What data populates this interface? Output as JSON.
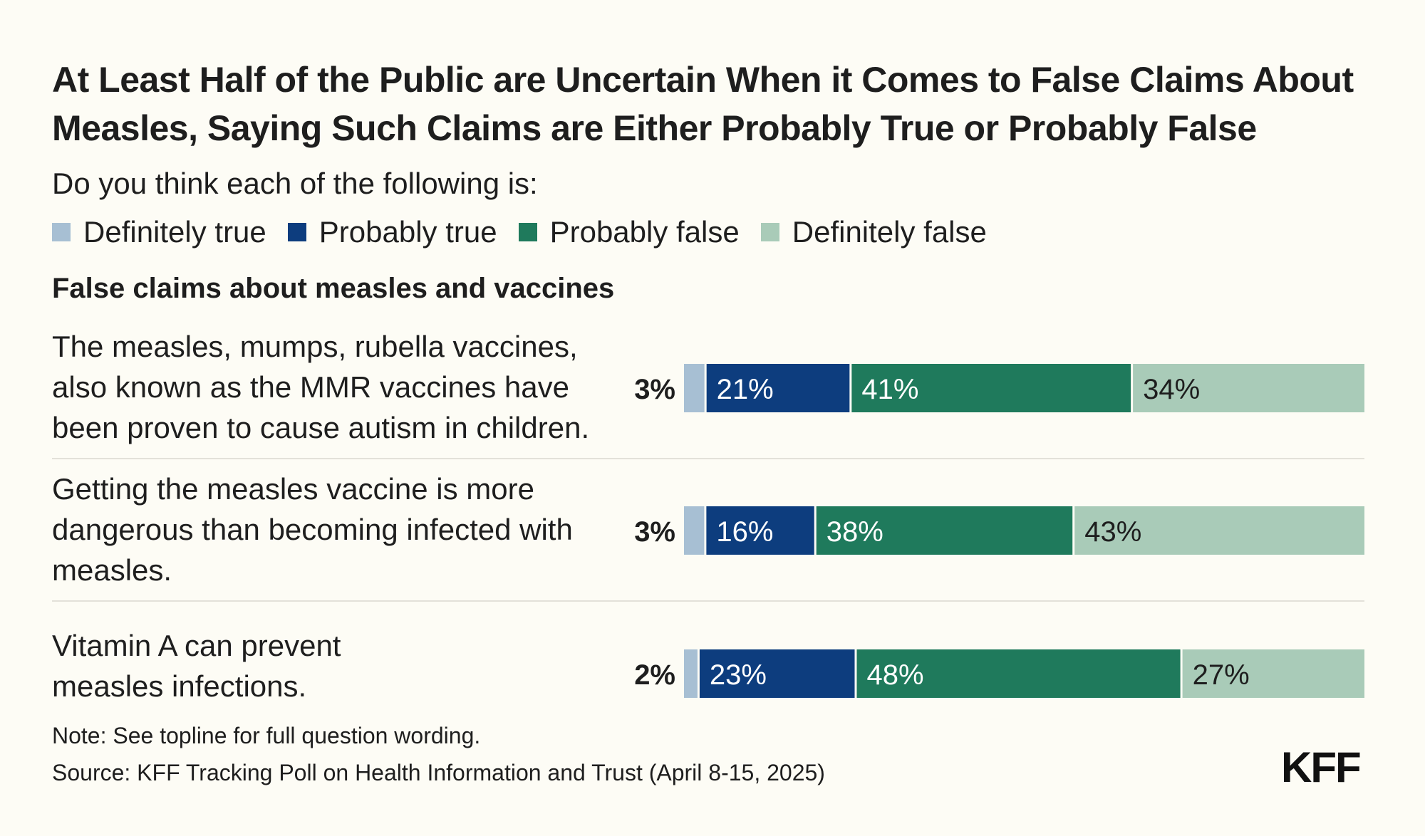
{
  "chart_data": {
    "type": "bar",
    "orientation": "horizontal",
    "stacked": true,
    "title": "At Least Half of the Public are Uncertain When it Comes to False Claims About Measles, Saying Such Claims are Either Probably True or Probably False",
    "subtitle": "Do you think each of the following is:",
    "section_heading": "False claims about measles and vaccines",
    "unit": "%",
    "categories": [
      "The measles, mumps, rubella vaccines, also known as the MMR vaccines have been proven to cause autism in children.",
      "Getting the measles vaccine is more dangerous than becoming infected with measles.",
      "Vitamin A can prevent measles infections."
    ],
    "series": [
      {
        "name": "Definitely true",
        "color": "#a7bfd3",
        "values": [
          3,
          3,
          2
        ]
      },
      {
        "name": "Probably true",
        "color": "#0d3d7e",
        "values": [
          21,
          16,
          23
        ]
      },
      {
        "name": "Probably false",
        "color": "#1f7a5c",
        "values": [
          41,
          38,
          48
        ]
      },
      {
        "name": "Definitely false",
        "color": "#a9cbb8",
        "values": [
          34,
          43,
          27
        ]
      }
    ],
    "legend_position": "top-left",
    "xlim": [
      0,
      100
    ],
    "note": "Note: See topline for full question wording.",
    "source": "Source: KFF Tracking Poll on Health Information and Trust (April 8-15, 2025)",
    "logo": "KFF"
  }
}
